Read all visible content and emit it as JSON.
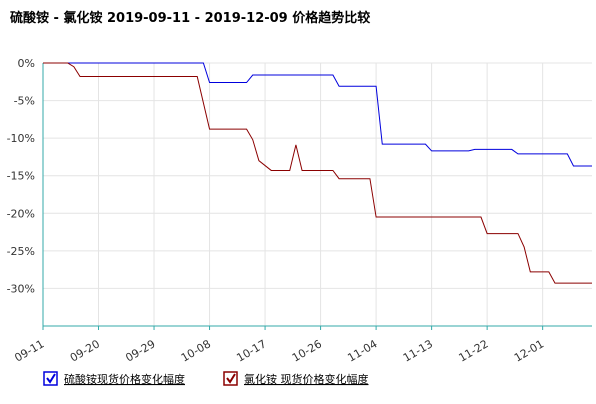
{
  "chart_data": {
    "type": "line",
    "title": "硫酸铵 - 氯化铵 2019-09-11 - 2019-12-09 价格趋势比较",
    "xlim": [
      "09-11",
      "12-09"
    ],
    "xticks": [
      "09-11",
      "09-20",
      "09-29",
      "10-08",
      "10-17",
      "10-26",
      "11-04",
      "11-13",
      "11-22",
      "12-01"
    ],
    "ylim": [
      -35,
      0
    ],
    "yticks": [
      {
        "value": 0,
        "label": "0%"
      },
      {
        "value": -5,
        "label": "-5%"
      },
      {
        "value": -10,
        "label": "-10%"
      },
      {
        "value": -15,
        "label": "-15%"
      },
      {
        "value": -20,
        "label": "-20%"
      },
      {
        "value": -25,
        "label": "-25%"
      },
      {
        "value": -30,
        "label": "-30%"
      }
    ],
    "grid": true,
    "series": [
      {
        "name": "硫酸铵现货价格变化幅度",
        "color": "#0000dd",
        "x": [
          "09-11",
          "10-07",
          "10-08",
          "10-14",
          "10-15",
          "10-28",
          "10-29",
          "11-04",
          "11-05",
          "11-12",
          "11-13",
          "11-19",
          "11-20",
          "11-26",
          "11-27",
          "12-05",
          "12-06",
          "12-09"
        ],
        "values": [
          0,
          0,
          -2.6,
          -2.6,
          -1.6,
          -1.6,
          -3.1,
          -3.1,
          -10.8,
          -10.8,
          -11.7,
          -11.7,
          -11.5,
          -11.5,
          -12.1,
          -12.1,
          -13.7,
          -13.7
        ]
      },
      {
        "name": "氯化铵 现货价格变化幅度",
        "color": "#8b0000",
        "x": [
          "09-11",
          "09-15",
          "09-16",
          "09-17",
          "10-06",
          "10-08",
          "10-14",
          "10-15",
          "10-16",
          "10-18",
          "10-21",
          "10-22",
          "10-23",
          "10-28",
          "10-29",
          "11-03",
          "11-04",
          "11-21",
          "11-22",
          "11-27",
          "11-28",
          "11-29",
          "12-02",
          "12-03",
          "12-09"
        ],
        "values": [
          0,
          0,
          -0.5,
          -1.8,
          -1.8,
          -8.8,
          -8.8,
          -10.2,
          -13,
          -14.3,
          -14.3,
          -10.9,
          -14.3,
          -14.3,
          -15.4,
          -15.4,
          -20.5,
          -20.5,
          -22.7,
          -22.7,
          -24.5,
          -27.8,
          -27.8,
          -29.3,
          -29.3
        ]
      }
    ]
  }
}
